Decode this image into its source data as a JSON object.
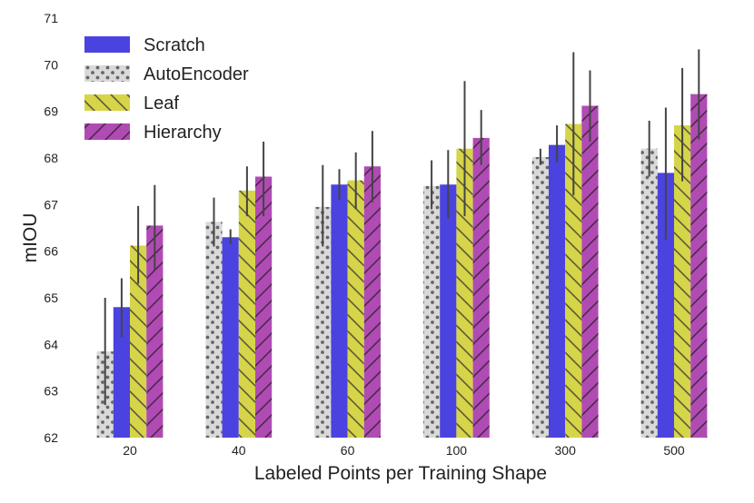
{
  "chart_data": {
    "type": "bar",
    "title": "",
    "xlabel": "Labeled Points per Training Shape",
    "ylabel": "mIOU",
    "ylim": [
      62,
      71
    ],
    "yticks": [
      "62",
      "63",
      "64",
      "65",
      "66",
      "67",
      "68",
      "69",
      "70",
      "71"
    ],
    "categories": [
      "20",
      "40",
      "60",
      "100",
      "300",
      "500"
    ],
    "grid": false,
    "legend_position": "top-left",
    "series": [
      {
        "name": "AutoEncoder",
        "color": "#d9d9d9",
        "pattern": "dots",
        "values": [
          63.85,
          66.63,
          66.95,
          67.4,
          68.02,
          68.2
        ],
        "err_low": [
          62.7,
          66.1,
          66.1,
          66.9,
          67.85,
          67.6
        ],
        "err_high": [
          65.0,
          67.15,
          67.85,
          67.95,
          68.2,
          68.8
        ]
      },
      {
        "name": "Scratch",
        "color": "#4a43e0",
        "pattern": "solid",
        "values": [
          64.8,
          66.3,
          67.43,
          67.43,
          68.28,
          67.68
        ],
        "err_low": [
          64.15,
          66.15,
          67.1,
          66.7,
          67.9,
          66.25
        ],
        "err_high": [
          65.42,
          66.47,
          67.76,
          68.17,
          68.7,
          69.08
        ]
      },
      {
        "name": "Leaf",
        "color": "#d6d448",
        "pattern": "backslash",
        "values": [
          66.12,
          67.3,
          67.52,
          68.2,
          68.73,
          68.7
        ],
        "err_low": [
          65.3,
          66.75,
          66.9,
          66.75,
          67.2,
          67.5
        ],
        "err_high": [
          66.97,
          67.82,
          68.12,
          69.65,
          70.27,
          69.93
        ]
      },
      {
        "name": "Hierarchy",
        "color": "#b04bb4",
        "pattern": "slash",
        "values": [
          66.55,
          67.6,
          67.82,
          68.43,
          69.12,
          69.37
        ],
        "err_low": [
          65.6,
          66.75,
          67.05,
          67.85,
          68.35,
          68.4
        ],
        "err_high": [
          67.42,
          68.35,
          68.58,
          69.03,
          69.88,
          70.33
        ]
      }
    ],
    "legend_order": [
      "Scratch",
      "AutoEncoder",
      "Leaf",
      "Hierarchy"
    ]
  }
}
